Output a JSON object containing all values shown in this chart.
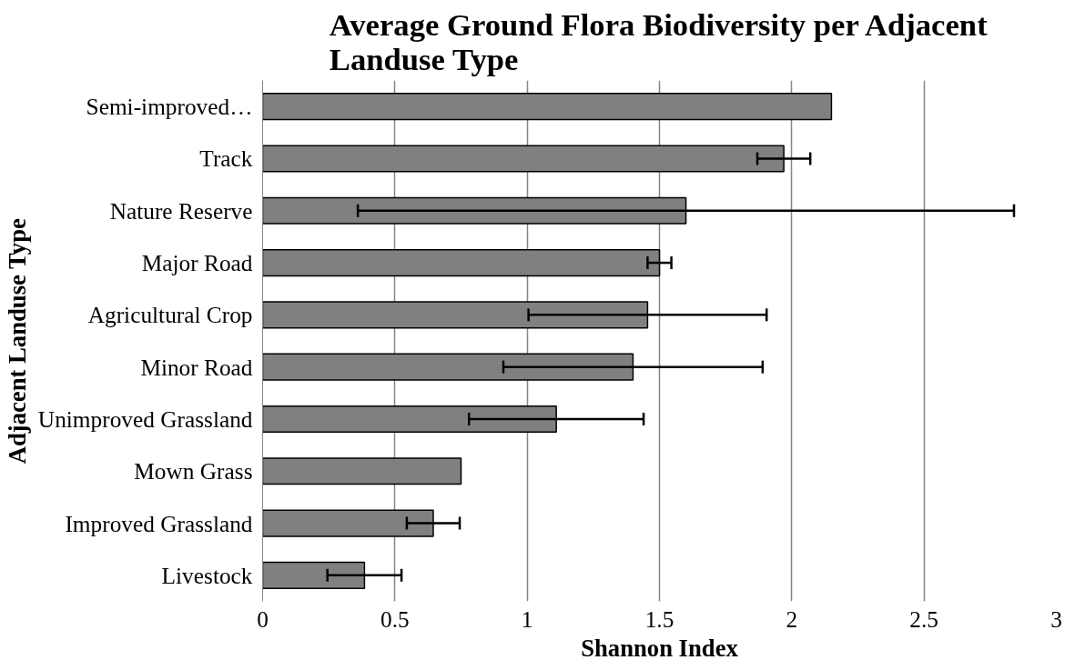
{
  "chart_data": {
    "type": "bar",
    "orientation": "horizontal",
    "title": "Average Ground Flora Biodiversity per Adjacent Landuse Type",
    "xlabel": "Shannon Index",
    "ylabel": "Adjacent Landuse Type",
    "categories": [
      "Semi-improved…",
      "Track",
      "Nature Reserve",
      "Major Road",
      "Agricultural Crop",
      "Minor Road",
      "Unimproved Grassland",
      "Mown Grass",
      "Improved Grassland",
      "Livestock"
    ],
    "values": [
      2.15,
      1.97,
      1.6,
      1.5,
      1.455,
      1.4,
      1.11,
      0.75,
      0.645,
      0.385
    ],
    "errors": [
      null,
      0.1,
      1.24,
      0.045,
      0.45,
      0.49,
      0.33,
      null,
      0.1,
      0.14
    ],
    "color": "#808080",
    "xlim": [
      0,
      3
    ],
    "xticks": [
      0,
      0.5,
      1,
      1.5,
      2,
      2.5,
      3
    ],
    "grid": "x"
  }
}
